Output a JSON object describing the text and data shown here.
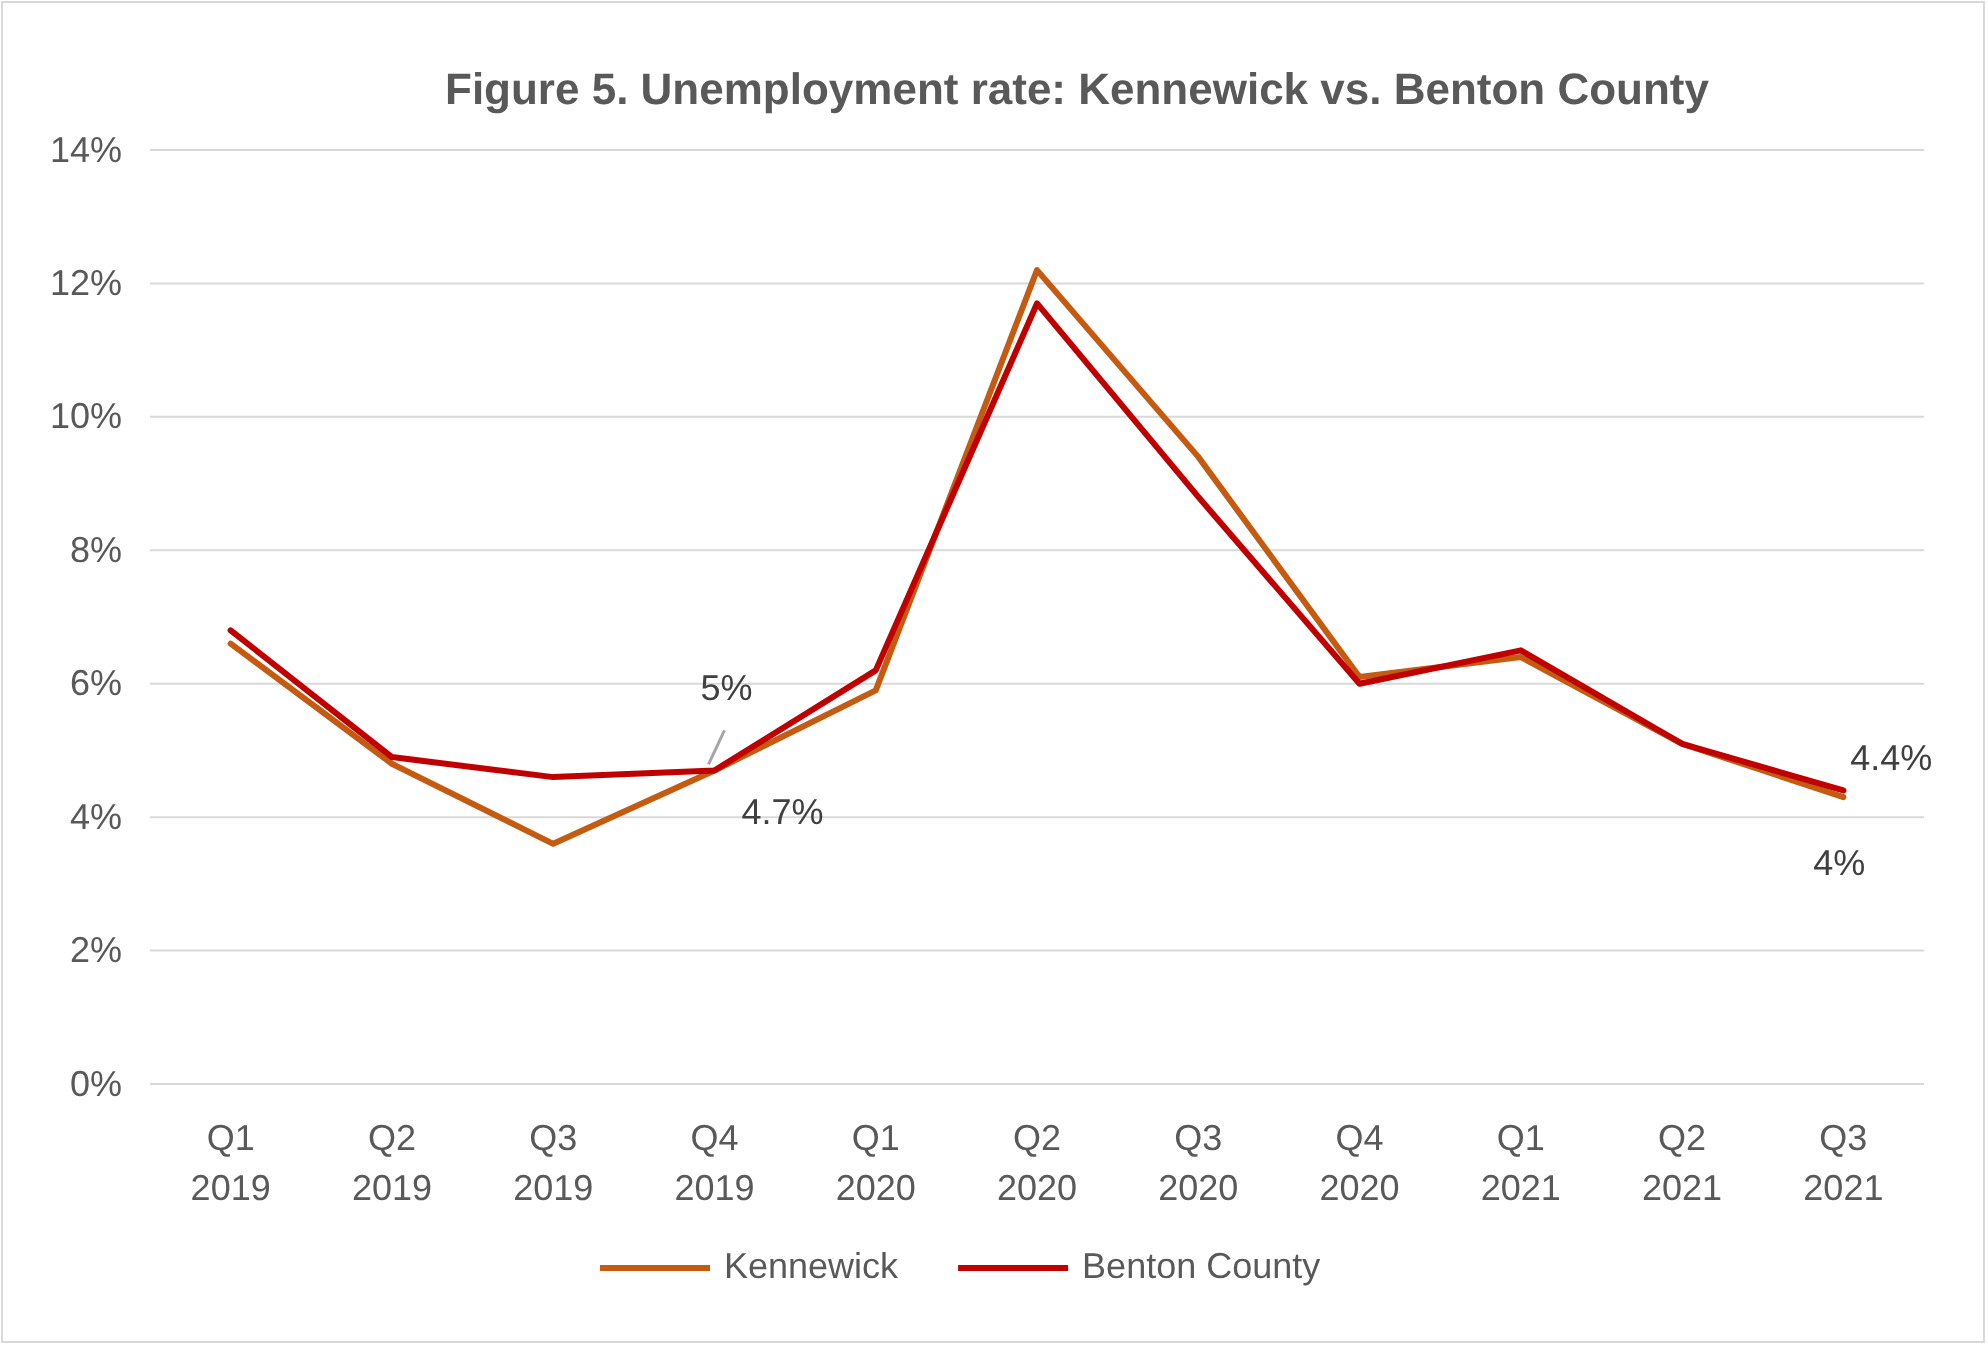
{
  "chart_data": {
    "type": "line",
    "title": "Figure 5. Unemployment rate:  Kennewick vs. Benton County",
    "categories": [
      "Q1 2019",
      "Q2 2019",
      "Q3 2019",
      "Q4 2019",
      "Q1 2020",
      "Q2 2020",
      "Q3 2020",
      "Q4 2020",
      "Q1 2021",
      "Q2 2021",
      "Q3 2021"
    ],
    "series": [
      {
        "name": "Kennewick",
        "color": "#c55a11",
        "values": [
          6.6,
          4.8,
          3.6,
          4.7,
          5.9,
          12.2,
          9.4,
          6.1,
          6.4,
          5.1,
          4.3
        ],
        "value_labels": [
          null,
          null,
          null,
          "5%",
          null,
          null,
          null,
          null,
          null,
          null,
          "4%"
        ]
      },
      {
        "name": "Benton County",
        "color": "#c00000",
        "values": [
          6.8,
          4.9,
          4.6,
          4.7,
          6.2,
          11.7,
          8.8,
          6.0,
          6.5,
          5.1,
          4.4
        ],
        "value_labels": [
          null,
          null,
          null,
          "4.7%",
          null,
          null,
          null,
          null,
          null,
          null,
          "4.4%"
        ]
      }
    ],
    "ylim": [
      0,
      14
    ],
    "yticks": [
      {
        "value": 0,
        "label": "0%"
      },
      {
        "value": 2,
        "label": "2%"
      },
      {
        "value": 4,
        "label": "4%"
      },
      {
        "value": 6,
        "label": "6%"
      },
      {
        "value": 8,
        "label": "8%"
      },
      {
        "value": 10,
        "label": "10%"
      },
      {
        "value": 12,
        "label": "12%"
      },
      {
        "value": 14,
        "label": "14%"
      }
    ],
    "grid": "y",
    "legend": "bottom",
    "marker": "none",
    "line_style": "solid"
  }
}
